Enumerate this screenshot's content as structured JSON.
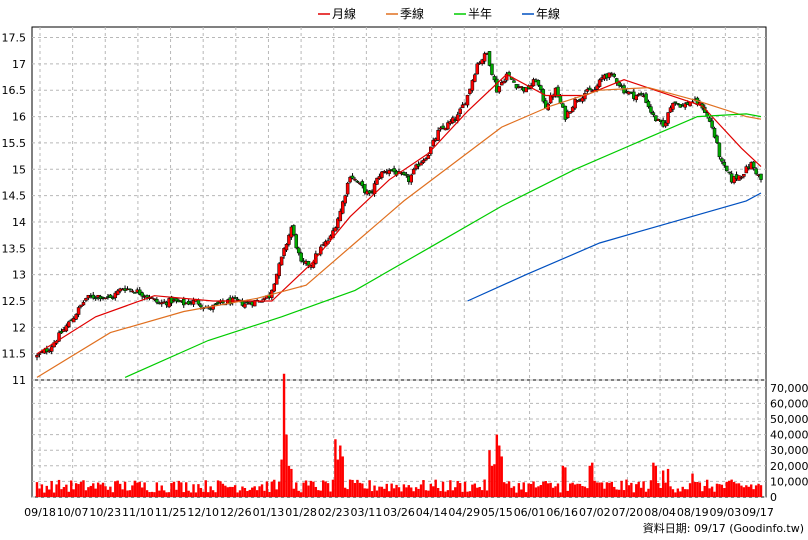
{
  "legend": [
    {
      "label": "月線",
      "color": "#e00000"
    },
    {
      "label": "季線",
      "color": "#e07020"
    },
    {
      "label": "半年",
      "color": "#00cc00"
    },
    {
      "label": "年線",
      "color": "#0050c0"
    }
  ],
  "footer": "資料日期: 09/17  (Goodinfo.tw)",
  "colors": {
    "up": "#ff0000",
    "down": "#00aa00",
    "volume": "#ff0000",
    "grid": "#b8b8b8"
  },
  "chart_data": [
    {
      "type": "candlestick",
      "title": "",
      "y_ticks": [
        "11",
        "11.5",
        "12",
        "12.5",
        "13",
        "13.5",
        "14",
        "14.5",
        "15",
        "15.5",
        "16",
        "16.5",
        "17",
        "17.5"
      ],
      "ylim": [
        11,
        17.7
      ],
      "x_ticks": [
        "09/18",
        "10/07",
        "10/23",
        "11/10",
        "11/25",
        "12/10",
        "12/26",
        "01/13",
        "01/28",
        "02/23",
        "03/11",
        "03/26",
        "04/14",
        "04/29",
        "05/15",
        "06/01",
        "06/16",
        "07/02",
        "07/20",
        "08/04",
        "08/19",
        "09/03",
        "09/17"
      ],
      "close_anchors": [
        [
          0,
          11.45
        ],
        [
          5,
          11.6
        ],
        [
          10,
          11.9
        ],
        [
          15,
          12.2
        ],
        [
          20,
          12.55
        ],
        [
          25,
          12.6
        ],
        [
          30,
          12.55
        ],
        [
          35,
          12.75
        ],
        [
          40,
          12.7
        ],
        [
          45,
          12.6
        ],
        [
          50,
          12.45
        ],
        [
          55,
          12.5
        ],
        [
          60,
          12.45
        ],
        [
          65,
          12.5
        ],
        [
          70,
          12.35
        ],
        [
          75,
          12.45
        ],
        [
          80,
          12.5
        ],
        [
          85,
          12.45
        ],
        [
          90,
          12.5
        ],
        [
          95,
          12.6
        ],
        [
          100,
          13.3
        ],
        [
          104,
          13.9
        ],
        [
          108,
          13.2
        ],
        [
          112,
          13.2
        ],
        [
          116,
          13.5
        ],
        [
          120,
          13.7
        ],
        [
          124,
          14.2
        ],
        [
          128,
          14.9
        ],
        [
          132,
          14.7
        ],
        [
          136,
          14.5
        ],
        [
          140,
          14.9
        ],
        [
          144,
          15.0
        ],
        [
          148,
          14.9
        ],
        [
          152,
          14.8
        ],
        [
          156,
          15.1
        ],
        [
          160,
          15.3
        ],
        [
          164,
          15.7
        ],
        [
          168,
          15.85
        ],
        [
          172,
          16.0
        ],
        [
          176,
          16.4
        ],
        [
          180,
          17.0
        ],
        [
          184,
          17.2
        ],
        [
          188,
          16.5
        ],
        [
          192,
          16.8
        ],
        [
          196,
          16.6
        ],
        [
          200,
          16.5
        ],
        [
          204,
          16.7
        ],
        [
          208,
          16.2
        ],
        [
          212,
          16.5
        ],
        [
          216,
          16.0
        ],
        [
          220,
          16.3
        ],
        [
          224,
          16.45
        ],
        [
          228,
          16.5
        ],
        [
          232,
          16.8
        ],
        [
          236,
          16.75
        ],
        [
          240,
          16.5
        ],
        [
          244,
          16.4
        ],
        [
          248,
          16.4
        ],
        [
          252,
          16.0
        ],
        [
          256,
          15.8
        ],
        [
          260,
          16.3
        ],
        [
          264,
          16.2
        ],
        [
          268,
          16.3
        ],
        [
          272,
          16.2
        ],
        [
          276,
          15.8
        ],
        [
          280,
          15.1
        ],
        [
          284,
          14.8
        ],
        [
          288,
          14.9
        ],
        [
          292,
          15.1
        ],
        [
          296,
          14.8
        ]
      ],
      "series": [
        {
          "name": "月線",
          "x": [
            0,
            24,
            48,
            72,
            96,
            112,
            128,
            144,
            160,
            176,
            192,
            208,
            224,
            240,
            256,
            272,
            288,
            296
          ],
          "y": [
            11.5,
            12.2,
            12.6,
            12.5,
            12.5,
            13.2,
            14.1,
            14.8,
            15.3,
            16.1,
            16.8,
            16.4,
            16.4,
            16.7,
            16.45,
            16.2,
            15.4,
            15.05
          ]
        },
        {
          "name": "季線",
          "x": [
            0,
            30,
            60,
            90,
            110,
            130,
            150,
            170,
            190,
            210,
            230,
            250,
            270,
            290,
            296
          ],
          "y": [
            11.05,
            11.9,
            12.3,
            12.55,
            12.8,
            13.6,
            14.4,
            15.1,
            15.8,
            16.2,
            16.5,
            16.55,
            16.3,
            16.0,
            15.95
          ]
        },
        {
          "name": "半年",
          "x": [
            36,
            70,
            100,
            130,
            160,
            190,
            220,
            250,
            270,
            290,
            296
          ],
          "y": [
            11.05,
            11.75,
            12.2,
            12.7,
            13.5,
            14.3,
            15.0,
            15.6,
            16.0,
            16.05,
            16.0
          ]
        },
        {
          "name": "年線",
          "x": [
            176,
            200,
            230,
            260,
            290,
            296
          ],
          "y": [
            12.5,
            13.0,
            13.6,
            14.0,
            14.4,
            14.55
          ]
        }
      ]
    },
    {
      "type": "bar",
      "title": "",
      "y_ticks": [
        "0",
        "10,000",
        "20,000",
        "30,000",
        "40,000",
        "50,000",
        "60,000",
        "70,000"
      ],
      "ylim": [
        0,
        75000
      ],
      "spikes": [
        [
          100,
          24000
        ],
        [
          101,
          79000
        ],
        [
          102,
          40000
        ],
        [
          103,
          20000
        ],
        [
          104,
          18000
        ],
        [
          122,
          37000
        ],
        [
          123,
          24000
        ],
        [
          124,
          33000
        ],
        [
          125,
          26000
        ],
        [
          185,
          30000
        ],
        [
          186,
          20000
        ],
        [
          187,
          21000
        ],
        [
          188,
          40000
        ],
        [
          189,
          33000
        ],
        [
          190,
          26000
        ],
        [
          215,
          20000
        ],
        [
          216,
          19000
        ],
        [
          226,
          20000
        ],
        [
          227,
          22000
        ],
        [
          252,
          22000
        ],
        [
          253,
          20000
        ],
        [
          256,
          17000
        ],
        [
          258,
          18000
        ],
        [
          268,
          15000
        ]
      ],
      "base_volume": 7000
    }
  ]
}
